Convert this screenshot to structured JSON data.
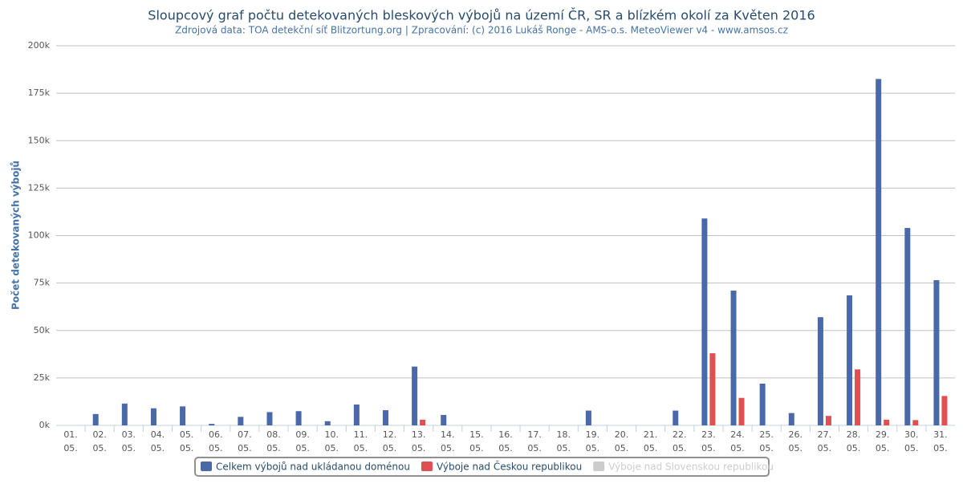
{
  "chart_data": {
    "type": "bar",
    "title": "Sloupcový graf počtu detekovaných bleskových výbojů na území ČR, SR a blízkém okolí za Květen 2016",
    "subtitle": "Zdrojová data: TOA detekční síť Blitzortung.org | Zpracování: (c) 2016 Lukáš Ronge - AMS-o.s. MeteoViewer v4 - www.amsos.cz",
    "ylabel": "Počet detekovaných výbojů",
    "categories": [
      "01. 05.",
      "02. 05.",
      "03. 05.",
      "04. 05.",
      "05. 05.",
      "06. 05.",
      "07. 05.",
      "08. 05.",
      "09. 05.",
      "10. 05.",
      "11. 05.",
      "12. 05.",
      "13. 05.",
      "14. 05.",
      "15. 05.",
      "16. 05.",
      "17. 05.",
      "18. 05.",
      "19. 05.",
      "20. 05.",
      "21. 05.",
      "22. 05.",
      "23. 05.",
      "24. 05.",
      "25. 05.",
      "26. 05.",
      "27. 05.",
      "28. 05.",
      "29. 05.",
      "30. 05.",
      "31. 05."
    ],
    "series": [
      {
        "name": "Celkem výbojů nad ukládanou doménou",
        "color": "#4a69a8",
        "values": [
          0,
          6000,
          11500,
          9000,
          10000,
          800,
          4500,
          7000,
          7500,
          2200,
          11000,
          8000,
          31000,
          5500,
          0,
          0,
          0,
          0,
          7800,
          0,
          0,
          7800,
          109000,
          71000,
          22000,
          6500,
          57000,
          68500,
          182500,
          104000,
          76500
        ]
      },
      {
        "name": "Výboje nad Českou republikou",
        "color": "#e15050",
        "values": [
          0,
          0,
          0,
          0,
          0,
          0,
          0,
          0,
          0,
          0,
          0,
          0,
          3000,
          0,
          0,
          0,
          0,
          0,
          0,
          0,
          0,
          0,
          38000,
          14500,
          0,
          0,
          5000,
          29500,
          3000,
          2800,
          15500
        ]
      },
      {
        "name": "Výboje nad Slovenskou republikou",
        "color": "#cccccc",
        "visible": false
      }
    ],
    "ylim": [
      0,
      200000
    ],
    "yticks": [
      {
        "value": 0,
        "label": "0k"
      },
      {
        "value": 25000,
        "label": "25k"
      },
      {
        "value": 50000,
        "label": "50k"
      },
      {
        "value": 75000,
        "label": "75k"
      },
      {
        "value": 100000,
        "label": "100k"
      },
      {
        "value": 125000,
        "label": "125k"
      },
      {
        "value": 150000,
        "label": "150k"
      },
      {
        "value": 175000,
        "label": "175k"
      },
      {
        "value": 200000,
        "label": "200k"
      }
    ],
    "grid": true,
    "legend": "bottom"
  }
}
